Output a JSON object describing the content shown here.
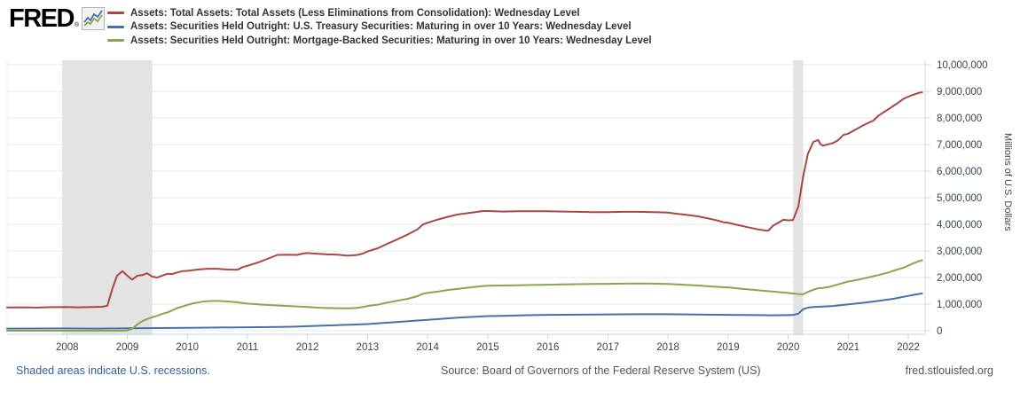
{
  "header": {
    "logo_text": "FRED",
    "logo_registered": "®",
    "legend": [
      {
        "label": "Assets: Total Assets: Total Assets (Less Eliminations from Consolidation): Wednesday Level",
        "color": "#aa4643"
      },
      {
        "label": "Assets: Securities Held Outright: U.S. Treasury Securities: Maturing in over 10 Years: Wednesday Level",
        "color": "#4572a7"
      },
      {
        "label": "Assets: Securities Held Outright: Mortgage-Backed Securities: Maturing in over 10 Years: Wednesday Level",
        "color": "#89a54e"
      }
    ]
  },
  "footer": {
    "recession_note": "Shaded areas indicate U.S. recessions.",
    "source": "Source: Board of Governors of the Federal Reserve System (US)",
    "site": "fred.stlouisfed.org"
  },
  "chart_data": {
    "type": "line",
    "title": "",
    "xlabel": "",
    "ylabel_right": "Millions of U.S. Dollars",
    "xlim": [
      2007.0,
      2022.28
    ],
    "ylim": [
      0,
      10000000
    ],
    "x_ticks": [
      2008,
      2009,
      2010,
      2011,
      2012,
      2013,
      2014,
      2015,
      2016,
      2017,
      2018,
      2019,
      2020,
      2021,
      2022
    ],
    "y_ticks": [
      0,
      1000000,
      2000000,
      3000000,
      4000000,
      5000000,
      6000000,
      7000000,
      8000000,
      9000000,
      10000000
    ],
    "grid": "horizontal",
    "legend_position": "top",
    "recessions": [
      {
        "start": 2007.917,
        "end": 2009.417
      },
      {
        "start": 2020.083,
        "end": 2020.25
      }
    ],
    "colors": {
      "recession_band": "#e3e3e3",
      "gridline": "#e7e7e7",
      "axis": "#c9d4e4",
      "tick_text": "#36454f"
    },
    "series": [
      {
        "name": "Assets: Total Assets: Total Assets (Less Eliminations from Consolidation): Wednesday Level",
        "color": "#aa4643",
        "points": [
          [
            2007.0,
            872000
          ],
          [
            2007.25,
            880000
          ],
          [
            2007.5,
            870000
          ],
          [
            2007.75,
            885000
          ],
          [
            2008.0,
            890000
          ],
          [
            2008.17,
            880000
          ],
          [
            2008.33,
            885000
          ],
          [
            2008.5,
            895000
          ],
          [
            2008.58,
            900000
          ],
          [
            2008.67,
            940000
          ],
          [
            2008.75,
            1560000
          ],
          [
            2008.83,
            2070000
          ],
          [
            2008.92,
            2240000
          ],
          [
            2009.0,
            2070000
          ],
          [
            2009.08,
            1920000
          ],
          [
            2009.17,
            2070000
          ],
          [
            2009.25,
            2090000
          ],
          [
            2009.33,
            2160000
          ],
          [
            2009.42,
            2030000
          ],
          [
            2009.5,
            2000000
          ],
          [
            2009.58,
            2070000
          ],
          [
            2009.67,
            2140000
          ],
          [
            2009.75,
            2130000
          ],
          [
            2009.83,
            2190000
          ],
          [
            2009.92,
            2240000
          ],
          [
            2010.0,
            2250000
          ],
          [
            2010.17,
            2300000
          ],
          [
            2010.33,
            2330000
          ],
          [
            2010.5,
            2330000
          ],
          [
            2010.67,
            2300000
          ],
          [
            2010.83,
            2290000
          ],
          [
            2010.92,
            2390000
          ],
          [
            2011.0,
            2440000
          ],
          [
            2011.17,
            2560000
          ],
          [
            2011.33,
            2700000
          ],
          [
            2011.5,
            2850000
          ],
          [
            2011.67,
            2860000
          ],
          [
            2011.83,
            2850000
          ],
          [
            2011.92,
            2900000
          ],
          [
            2012.0,
            2920000
          ],
          [
            2012.17,
            2890000
          ],
          [
            2012.33,
            2870000
          ],
          [
            2012.5,
            2860000
          ],
          [
            2012.67,
            2820000
          ],
          [
            2012.83,
            2850000
          ],
          [
            2012.92,
            2900000
          ],
          [
            2013.0,
            2980000
          ],
          [
            2013.17,
            3100000
          ],
          [
            2013.33,
            3270000
          ],
          [
            2013.5,
            3440000
          ],
          [
            2013.67,
            3620000
          ],
          [
            2013.83,
            3810000
          ],
          [
            2013.92,
            3990000
          ],
          [
            2014.0,
            4060000
          ],
          [
            2014.17,
            4180000
          ],
          [
            2014.33,
            4280000
          ],
          [
            2014.5,
            4370000
          ],
          [
            2014.67,
            4420000
          ],
          [
            2014.83,
            4470000
          ],
          [
            2014.92,
            4500000
          ],
          [
            2015.0,
            4500000
          ],
          [
            2015.25,
            4480000
          ],
          [
            2015.5,
            4490000
          ],
          [
            2015.75,
            4490000
          ],
          [
            2016.0,
            4490000
          ],
          [
            2016.25,
            4480000
          ],
          [
            2016.5,
            4470000
          ],
          [
            2016.75,
            4460000
          ],
          [
            2017.0,
            4460000
          ],
          [
            2017.25,
            4470000
          ],
          [
            2017.5,
            4470000
          ],
          [
            2017.75,
            4460000
          ],
          [
            2017.92,
            4450000
          ],
          [
            2018.0,
            4440000
          ],
          [
            2018.17,
            4390000
          ],
          [
            2018.33,
            4350000
          ],
          [
            2018.5,
            4300000
          ],
          [
            2018.67,
            4220000
          ],
          [
            2018.83,
            4140000
          ],
          [
            2018.92,
            4080000
          ],
          [
            2019.0,
            4060000
          ],
          [
            2019.17,
            3970000
          ],
          [
            2019.33,
            3890000
          ],
          [
            2019.5,
            3810000
          ],
          [
            2019.58,
            3780000
          ],
          [
            2019.67,
            3760000
          ],
          [
            2019.75,
            3950000
          ],
          [
            2019.83,
            4050000
          ],
          [
            2019.92,
            4170000
          ],
          [
            2020.0,
            4150000
          ],
          [
            2020.08,
            4160000
          ],
          [
            2020.17,
            4670000
          ],
          [
            2020.25,
            5800000
          ],
          [
            2020.33,
            6660000
          ],
          [
            2020.42,
            7100000
          ],
          [
            2020.5,
            7170000
          ],
          [
            2020.54,
            7010000
          ],
          [
            2020.58,
            6960000
          ],
          [
            2020.67,
            7010000
          ],
          [
            2020.75,
            7060000
          ],
          [
            2020.83,
            7160000
          ],
          [
            2020.92,
            7360000
          ],
          [
            2021.0,
            7410000
          ],
          [
            2021.08,
            7510000
          ],
          [
            2021.17,
            7620000
          ],
          [
            2021.25,
            7720000
          ],
          [
            2021.33,
            7810000
          ],
          [
            2021.42,
            7900000
          ],
          [
            2021.5,
            8080000
          ],
          [
            2021.58,
            8200000
          ],
          [
            2021.67,
            8330000
          ],
          [
            2021.75,
            8450000
          ],
          [
            2021.83,
            8570000
          ],
          [
            2021.92,
            8720000
          ],
          [
            2022.0,
            8800000
          ],
          [
            2022.08,
            8870000
          ],
          [
            2022.17,
            8940000
          ],
          [
            2022.23,
            8965000
          ]
        ]
      },
      {
        "name": "Assets: Securities Held Outright: U.S. Treasury Securities: Maturing in over 10 Years: Wednesday Level",
        "color": "#4572a7",
        "points": [
          [
            2007.0,
            80000
          ],
          [
            2007.5,
            82000
          ],
          [
            2008.0,
            85000
          ],
          [
            2008.5,
            80000
          ],
          [
            2009.0,
            90000
          ],
          [
            2009.5,
            100000
          ],
          [
            2010.0,
            110000
          ],
          [
            2010.5,
            120000
          ],
          [
            2011.0,
            130000
          ],
          [
            2011.5,
            140000
          ],
          [
            2011.75,
            150000
          ],
          [
            2012.0,
            170000
          ],
          [
            2012.25,
            190000
          ],
          [
            2012.5,
            210000
          ],
          [
            2012.75,
            230000
          ],
          [
            2013.0,
            250000
          ],
          [
            2013.25,
            290000
          ],
          [
            2013.5,
            330000
          ],
          [
            2013.75,
            370000
          ],
          [
            2014.0,
            410000
          ],
          [
            2014.25,
            450000
          ],
          [
            2014.5,
            490000
          ],
          [
            2014.75,
            520000
          ],
          [
            2015.0,
            550000
          ],
          [
            2015.25,
            560000
          ],
          [
            2015.5,
            575000
          ],
          [
            2015.75,
            585000
          ],
          [
            2016.0,
            595000
          ],
          [
            2016.5,
            605000
          ],
          [
            2017.0,
            615000
          ],
          [
            2017.5,
            620000
          ],
          [
            2018.0,
            620000
          ],
          [
            2018.5,
            610000
          ],
          [
            2019.0,
            595000
          ],
          [
            2019.5,
            585000
          ],
          [
            2019.75,
            580000
          ],
          [
            2020.0,
            585000
          ],
          [
            2020.08,
            590000
          ],
          [
            2020.17,
            640000
          ],
          [
            2020.25,
            810000
          ],
          [
            2020.33,
            870000
          ],
          [
            2020.42,
            890000
          ],
          [
            2020.5,
            900000
          ],
          [
            2020.75,
            930000
          ],
          [
            2021.0,
            990000
          ],
          [
            2021.25,
            1050000
          ],
          [
            2021.5,
            1120000
          ],
          [
            2021.75,
            1200000
          ],
          [
            2022.0,
            1310000
          ],
          [
            2022.17,
            1380000
          ],
          [
            2022.23,
            1400000
          ]
        ]
      },
      {
        "name": "Assets: Securities Held Outright: Mortgage-Backed Securities: Maturing in over 10 Years: Wednesday Level",
        "color": "#89a54e",
        "points": [
          [
            2007.0,
            0
          ],
          [
            2008.0,
            0
          ],
          [
            2008.92,
            0
          ],
          [
            2009.0,
            10000
          ],
          [
            2009.08,
            70000
          ],
          [
            2009.17,
            240000
          ],
          [
            2009.25,
            360000
          ],
          [
            2009.33,
            440000
          ],
          [
            2009.42,
            510000
          ],
          [
            2009.5,
            560000
          ],
          [
            2009.58,
            630000
          ],
          [
            2009.67,
            690000
          ],
          [
            2009.75,
            770000
          ],
          [
            2009.83,
            850000
          ],
          [
            2009.92,
            910000
          ],
          [
            2010.0,
            970000
          ],
          [
            2010.08,
            1020000
          ],
          [
            2010.17,
            1060000
          ],
          [
            2010.25,
            1090000
          ],
          [
            2010.33,
            1110000
          ],
          [
            2010.42,
            1120000
          ],
          [
            2010.5,
            1120000
          ],
          [
            2010.67,
            1100000
          ],
          [
            2010.83,
            1070000
          ],
          [
            2010.92,
            1040000
          ],
          [
            2011.0,
            1020000
          ],
          [
            2011.25,
            980000
          ],
          [
            2011.5,
            950000
          ],
          [
            2011.75,
            920000
          ],
          [
            2012.0,
            890000
          ],
          [
            2012.25,
            860000
          ],
          [
            2012.5,
            845000
          ],
          [
            2012.67,
            840000
          ],
          [
            2012.83,
            860000
          ],
          [
            2012.92,
            890000
          ],
          [
            2013.0,
            930000
          ],
          [
            2013.17,
            980000
          ],
          [
            2013.33,
            1060000
          ],
          [
            2013.5,
            1130000
          ],
          [
            2013.67,
            1200000
          ],
          [
            2013.83,
            1300000
          ],
          [
            2013.92,
            1390000
          ],
          [
            2014.0,
            1420000
          ],
          [
            2014.17,
            1470000
          ],
          [
            2014.33,
            1530000
          ],
          [
            2014.5,
            1570000
          ],
          [
            2014.67,
            1620000
          ],
          [
            2014.83,
            1660000
          ],
          [
            2014.92,
            1680000
          ],
          [
            2015.0,
            1690000
          ],
          [
            2015.25,
            1700000
          ],
          [
            2015.5,
            1710000
          ],
          [
            2015.75,
            1720000
          ],
          [
            2016.0,
            1730000
          ],
          [
            2016.25,
            1740000
          ],
          [
            2016.5,
            1750000
          ],
          [
            2016.75,
            1760000
          ],
          [
            2017.0,
            1765000
          ],
          [
            2017.25,
            1770000
          ],
          [
            2017.5,
            1775000
          ],
          [
            2017.75,
            1770000
          ],
          [
            2018.0,
            1760000
          ],
          [
            2018.25,
            1730000
          ],
          [
            2018.5,
            1700000
          ],
          [
            2018.75,
            1660000
          ],
          [
            2019.0,
            1630000
          ],
          [
            2019.25,
            1570000
          ],
          [
            2019.5,
            1520000
          ],
          [
            2019.75,
            1470000
          ],
          [
            2020.0,
            1420000
          ],
          [
            2020.08,
            1400000
          ],
          [
            2020.17,
            1380000
          ],
          [
            2020.25,
            1370000
          ],
          [
            2020.33,
            1460000
          ],
          [
            2020.42,
            1540000
          ],
          [
            2020.5,
            1600000
          ],
          [
            2020.58,
            1610000
          ],
          [
            2020.67,
            1640000
          ],
          [
            2020.75,
            1690000
          ],
          [
            2020.83,
            1740000
          ],
          [
            2020.92,
            1800000
          ],
          [
            2021.0,
            1850000
          ],
          [
            2021.08,
            1880000
          ],
          [
            2021.17,
            1920000
          ],
          [
            2021.25,
            1960000
          ],
          [
            2021.33,
            2000000
          ],
          [
            2021.42,
            2050000
          ],
          [
            2021.5,
            2090000
          ],
          [
            2021.58,
            2140000
          ],
          [
            2021.67,
            2190000
          ],
          [
            2021.75,
            2250000
          ],
          [
            2021.83,
            2310000
          ],
          [
            2021.92,
            2370000
          ],
          [
            2022.0,
            2450000
          ],
          [
            2022.08,
            2530000
          ],
          [
            2022.17,
            2610000
          ],
          [
            2022.23,
            2650000
          ]
        ]
      }
    ]
  }
}
